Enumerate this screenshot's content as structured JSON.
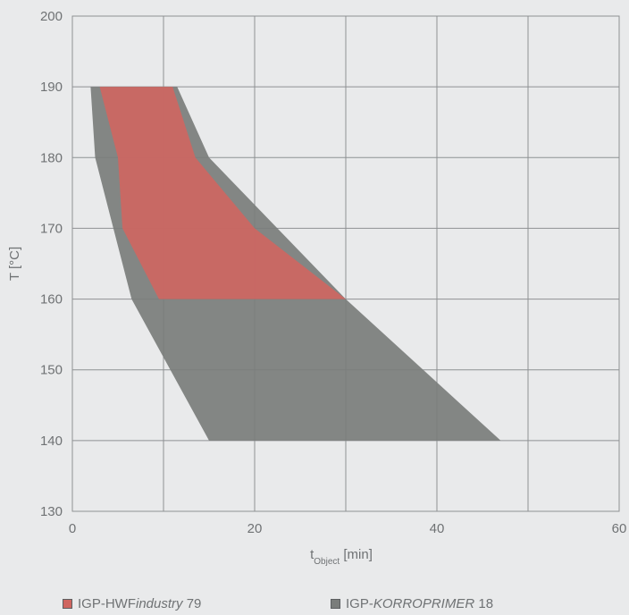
{
  "chart_data": {
    "type": "area",
    "title": "",
    "xlabel_main": "t",
    "xlabel_sub": "Object",
    "xlabel_unit": " [min]",
    "ylabel": "T [°C]",
    "xlim": [
      0,
      60
    ],
    "ylim": [
      130,
      200
    ],
    "xticks": [
      "0",
      "20",
      "40",
      "60"
    ],
    "xtick_values": [
      0,
      20,
      40,
      60
    ],
    "xgrid_values": [
      0,
      10,
      20,
      30,
      40,
      50,
      60
    ],
    "yticks": [
      "130",
      "140",
      "150",
      "160",
      "170",
      "180",
      "190",
      "200"
    ],
    "ytick_values": [
      130,
      140,
      150,
      160,
      170,
      180,
      190,
      200
    ],
    "grid": true,
    "legend_placement": "bottom",
    "series": [
      {
        "name": "IGP-KORROPRIMER 18",
        "color": "#7a7d7b",
        "fill_opacity": 0.92,
        "polygon": [
          {
            "x": 2,
            "y": 190
          },
          {
            "x": 11.5,
            "y": 190
          },
          {
            "x": 15,
            "y": 180
          },
          {
            "x": 30,
            "y": 160
          },
          {
            "x": 47,
            "y": 140
          },
          {
            "x": 15,
            "y": 140
          },
          {
            "x": 6.5,
            "y": 160
          },
          {
            "x": 2.5,
            "y": 180
          }
        ]
      },
      {
        "name": "IGP-HWFindustry 79",
        "color": "#cf6660",
        "fill_opacity": 0.9,
        "polygon": [
          {
            "x": 3,
            "y": 190
          },
          {
            "x": 11,
            "y": 190
          },
          {
            "x": 13.5,
            "y": 180
          },
          {
            "x": 20,
            "y": 170
          },
          {
            "x": 30,
            "y": 160
          },
          {
            "x": 9.5,
            "y": 160
          },
          {
            "x": 5.5,
            "y": 170
          },
          {
            "x": 5,
            "y": 180
          }
        ]
      }
    ]
  },
  "legend": {
    "items": [
      {
        "prefix": "IGP-HWF",
        "italic": "industry",
        "suffix": " 79",
        "color": "#cf6660"
      },
      {
        "prefix": "IGP-",
        "italic": "KORROPRIMER",
        "suffix": " 18",
        "color": "#7a7d7b"
      }
    ]
  }
}
